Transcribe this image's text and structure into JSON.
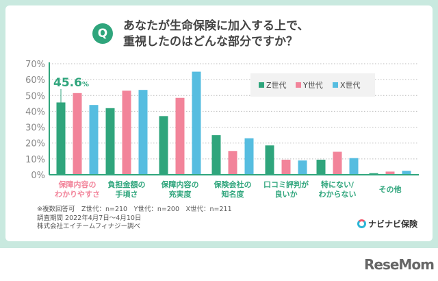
{
  "header": {
    "q_badge": "Q",
    "title_line1": "あなたが生命保険に加入する上で、",
    "title_line2": "重視したのはどんな部分ですか？"
  },
  "chart_data": {
    "type": "bar",
    "title": "あなたが生命保険に加入する上で、重視したのはどんな部分ですか？",
    "categories": [
      "保障内容のわかりやすさ",
      "負担金額の手頃さ",
      "保障内容の充実度",
      "保険会社の知名度",
      "口コミ評判が良いか",
      "特にない/わからない",
      "その他"
    ],
    "category_lines": [
      [
        "保障内容の",
        "わかりやすさ"
      ],
      [
        "負担金額の",
        "手頃さ"
      ],
      [
        "保障内容の",
        "充実度"
      ],
      [
        "保険会社の",
        "知名度"
      ],
      [
        "口コミ評判が",
        "良いか"
      ],
      [
        "特にない/",
        "わからない"
      ],
      [
        "その他",
        ""
      ]
    ],
    "series": [
      {
        "name": "Z世代",
        "color": "#2fa57c",
        "values": [
          45.6,
          42,
          37,
          25,
          18.5,
          9.5,
          1
        ]
      },
      {
        "name": "Y世代",
        "color": "#f2849a",
        "values": [
          51.5,
          53,
          48.5,
          15,
          9.5,
          14.5,
          2
        ]
      },
      {
        "name": "X世代",
        "color": "#56bde0",
        "values": [
          44,
          53.5,
          65,
          23,
          9,
          10.5,
          2.5
        ]
      }
    ],
    "ylim": [
      0,
      70
    ],
    "yticks": [
      "0%",
      "10%",
      "20%",
      "30%",
      "40%",
      "50%",
      "60%",
      "70%"
    ],
    "grid": true,
    "legend": "top-right",
    "annotation": {
      "value": "45.6",
      "unit": "%"
    },
    "highlight_color": "#f2849a"
  },
  "footer": {
    "note1": "※複数回答可　Z世代：n=210　Y世代：n=200　X世代：n=211",
    "note2": "調査期間 2022年4月7日～4月10日",
    "note3": "株式会社エイチームフィナジー調べ"
  },
  "brand": {
    "logo": "ナビナビ保険",
    "site": "ReseMom"
  }
}
